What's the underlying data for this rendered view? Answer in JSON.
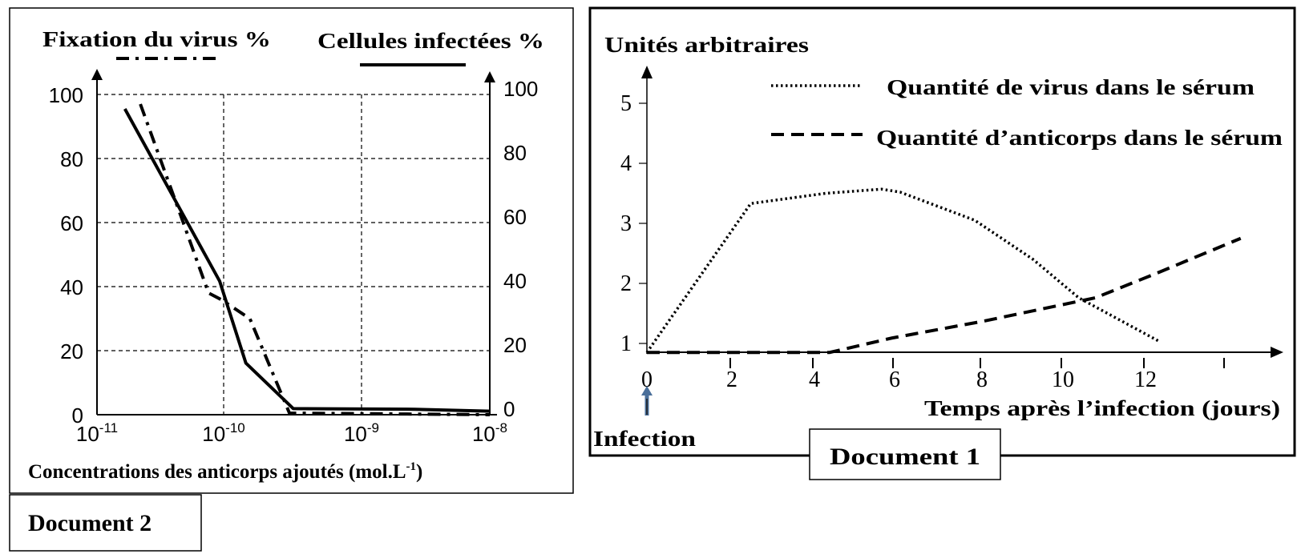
{
  "chart_data": [
    {
      "type": "line",
      "document_label": "Document 2",
      "title": "",
      "xlabel": "Concentrations des anticorps ajoutés (mol.L",
      "xlabel_exp": "-1",
      "xlabel_close": ")",
      "xscale": "log",
      "xlim": [
        1e-11,
        1e-08
      ],
      "x_ticks": [
        {
          "base": "10",
          "exp": "-11",
          "value": 1e-11
        },
        {
          "base": "10",
          "exp": "-10",
          "value": 1e-10
        },
        {
          "base": "10",
          "exp": "-9",
          "value": 1e-09
        },
        {
          "base": "10",
          "exp": "-8",
          "value": 1e-08
        }
      ],
      "ylabel_left": "Fixation du virus %",
      "ylabel_right": "Cellules infectées %",
      "ylim": [
        0,
        100
      ],
      "y_ticks": [
        "0",
        "20",
        "40",
        "60",
        "80",
        "100"
      ],
      "grid": true,
      "series": [
        {
          "name": "Fixation du virus %",
          "style": "dash-dot",
          "axis": "left",
          "x": [
            2.2e-11,
            4.6e-11,
            7.6e-11,
            9.5e-11,
            1.55e-10,
            3e-10,
            1e-08
          ],
          "y": [
            97,
            62,
            38,
            36,
            30,
            0.5,
            0
          ]
        },
        {
          "name": "Cellules infectées %",
          "style": "solid",
          "axis": "right",
          "x": [
            1.66e-11,
            9.3e-11,
            1.45e-10,
            3.2e-10,
            2.6e-09,
            1e-08
          ],
          "y": [
            95.5,
            41.7,
            16.1,
            1.9,
            1.7,
            1.1
          ]
        }
      ]
    },
    {
      "type": "line",
      "document_label": "Document 1",
      "title": "",
      "ylabel": "Unités arbitraires",
      "xlabel": "Temps après l’infection (jours)",
      "annotation": "Infection",
      "xlim": [
        0,
        15
      ],
      "ylim": [
        0.85,
        5.5
      ],
      "x_ticks": [
        "0",
        "2",
        "4",
        "6",
        "8",
        "10",
        "12",
        ""
      ],
      "y_ticks": [
        "1",
        "2",
        "3",
        "4",
        "5"
      ],
      "grid": false,
      "legend": "top-right",
      "series": [
        {
          "name": "Quantité de virus dans le sérum",
          "style": "dotted",
          "x": [
            0,
            2.5,
            4.3,
            5.65,
            6.1,
            7.9,
            9.3,
            10.4,
            12.35
          ],
          "y": [
            0.85,
            3.33,
            3.5,
            3.57,
            3.52,
            3.05,
            2.4,
            1.76,
            1.03
          ]
        },
        {
          "name": "Quantité d’anticorps dans le sérum",
          "style": "dashed",
          "x": [
            0,
            4.4,
            5.9,
            8.1,
            10.8,
            12.35,
            14.3
          ],
          "y": [
            0.85,
            0.85,
            1.09,
            1.37,
            1.76,
            2.19,
            2.75
          ]
        }
      ]
    }
  ]
}
